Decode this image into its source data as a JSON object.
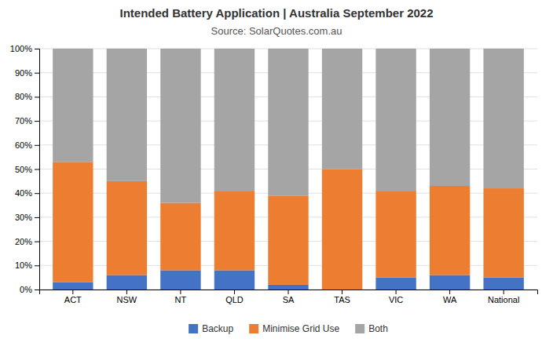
{
  "chart_data": {
    "type": "bar",
    "stacked": true,
    "title": "Intended Battery Application | Australia September 2022",
    "subtitle": "Source: SolarQuotes.com.au",
    "categories": [
      "ACT",
      "NSW",
      "NT",
      "QLD",
      "SA",
      "TAS",
      "VIC",
      "WA",
      "National"
    ],
    "series": [
      {
        "name": "Backup",
        "color": "#4472c4",
        "values": [
          3,
          6,
          8,
          8,
          2,
          0,
          5,
          6,
          5
        ]
      },
      {
        "name": "Minimise Grid Use",
        "color": "#ed7d31",
        "values": [
          50,
          39,
          28,
          33,
          37,
          50,
          36,
          37,
          37
        ]
      },
      {
        "name": "Both",
        "color": "#a5a5a5",
        "values": [
          47,
          55,
          64,
          59,
          61,
          50,
          59,
          57,
          58
        ]
      }
    ],
    "ylim": [
      0,
      100
    ],
    "yticks": [
      {
        "value": 0,
        "label": "0%"
      },
      {
        "value": 10,
        "label": "10%"
      },
      {
        "value": 20,
        "label": "20%"
      },
      {
        "value": 30,
        "label": "30%"
      },
      {
        "value": 40,
        "label": "40%"
      },
      {
        "value": 50,
        "label": "50%"
      },
      {
        "value": 60,
        "label": "60%"
      },
      {
        "value": 70,
        "label": "70%"
      },
      {
        "value": 80,
        "label": "80%"
      },
      {
        "value": 90,
        "label": "90%"
      },
      {
        "value": 100,
        "label": "100%"
      }
    ],
    "grid": true,
    "legend": "bottom"
  }
}
